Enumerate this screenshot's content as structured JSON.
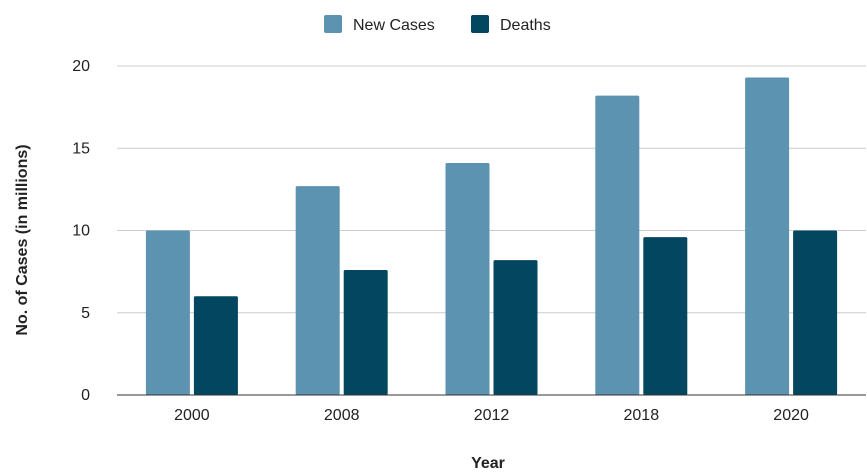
{
  "chart_data": {
    "type": "bar",
    "categories": [
      "2000",
      "2008",
      "2012",
      "2018",
      "2020"
    ],
    "series": [
      {
        "name": "New Cases",
        "color": "#5b93b0",
        "values": [
          10.0,
          12.7,
          14.1,
          18.2,
          19.3
        ]
      },
      {
        "name": "Deaths",
        "color": "#02465f",
        "values": [
          6.0,
          7.6,
          8.2,
          9.6,
          10.0
        ]
      }
    ],
    "title": "",
    "xlabel": "Year",
    "ylabel": "No. of Cases (in millions)",
    "ylim": [
      0,
      20
    ],
    "yticks": [
      "0",
      "5",
      "10",
      "15",
      "20"
    ],
    "grid": true,
    "legend_position": "top-center"
  }
}
